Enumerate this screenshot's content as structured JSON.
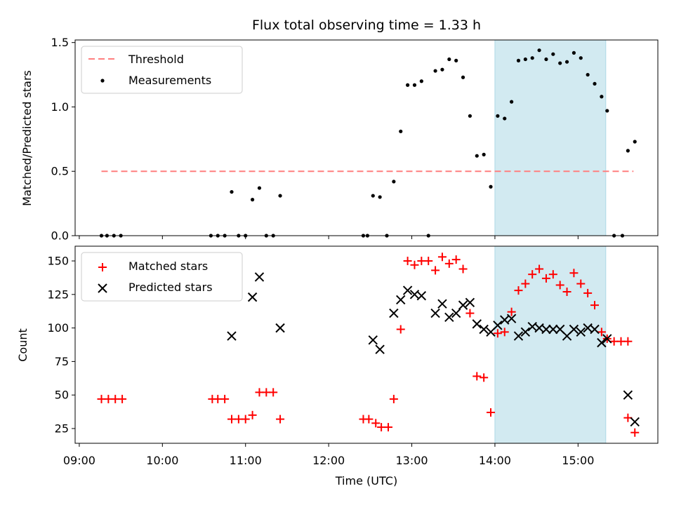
{
  "chart_data": {
    "type": "scatter",
    "title": "Flux total observing time = 1.33 h",
    "xlabel": "Time (UTC)",
    "x_ticks": [
      "09:00",
      "10:00",
      "11:00",
      "12:00",
      "13:00",
      "14:00",
      "15:00"
    ],
    "highlight_span": {
      "start": "14:00",
      "end": "15:20",
      "color": "#add8e6"
    },
    "top_panel": {
      "ylabel": "Matched/Predicted stars",
      "ylim": [
        0,
        1.52
      ],
      "y_ticks": [
        "0.0",
        "0.5",
        "1.0",
        "1.5"
      ],
      "legend_position": "top-left",
      "threshold": {
        "name": "Threshold",
        "value": 0.5,
        "x_start": "09:16",
        "x_end": "15:40",
        "color": "#ff7f7f"
      },
      "series": [
        {
          "name": "Measurements",
          "color": "#000000",
          "marker": "dot",
          "points": [
            [
              "09:16",
              0
            ],
            [
              "09:20",
              0
            ],
            [
              "09:25",
              0
            ],
            [
              "09:30",
              0
            ],
            [
              "10:35",
              0
            ],
            [
              "10:40",
              0
            ],
            [
              "10:45",
              0
            ],
            [
              "10:50",
              0.34
            ],
            [
              "10:55",
              0
            ],
            [
              "11:00",
              0
            ],
            [
              "11:05",
              0.28
            ],
            [
              "11:10",
              0.37
            ],
            [
              "11:15",
              0
            ],
            [
              "11:20",
              0
            ],
            [
              "11:25",
              0.31
            ],
            [
              "12:25",
              0
            ],
            [
              "12:28",
              0
            ],
            [
              "12:32",
              0.31
            ],
            [
              "12:37",
              0.3
            ],
            [
              "12:42",
              0
            ],
            [
              "12:47",
              0.42
            ],
            [
              "12:52",
              0.81
            ],
            [
              "12:57",
              1.17
            ],
            [
              "13:02",
              1.17
            ],
            [
              "13:07",
              1.2
            ],
            [
              "13:12",
              0
            ],
            [
              "13:17",
              1.28
            ],
            [
              "13:22",
              1.29
            ],
            [
              "13:27",
              1.37
            ],
            [
              "13:32",
              1.36
            ],
            [
              "13:37",
              1.23
            ],
            [
              "13:42",
              0.93
            ],
            [
              "13:47",
              0.62
            ],
            [
              "13:52",
              0.63
            ],
            [
              "13:57",
              0.38
            ],
            [
              "14:02",
              0.93
            ],
            [
              "14:07",
              0.91
            ],
            [
              "14:12",
              1.04
            ],
            [
              "14:17",
              1.36
            ],
            [
              "14:22",
              1.37
            ],
            [
              "14:27",
              1.38
            ],
            [
              "14:32",
              1.44
            ],
            [
              "14:37",
              1.37
            ],
            [
              "14:42",
              1.41
            ],
            [
              "14:47",
              1.34
            ],
            [
              "14:52",
              1.35
            ],
            [
              "14:57",
              1.42
            ],
            [
              "15:02",
              1.38
            ],
            [
              "15:07",
              1.25
            ],
            [
              "15:12",
              1.18
            ],
            [
              "15:17",
              1.08
            ],
            [
              "15:21",
              0.97
            ],
            [
              "15:26",
              0
            ],
            [
              "15:32",
              0
            ],
            [
              "15:36",
              0.66
            ],
            [
              "15:41",
              0.73
            ]
          ]
        }
      ]
    },
    "bottom_panel": {
      "ylabel": "Count",
      "ylim": [
        14,
        161
      ],
      "y_ticks": [
        "25",
        "50",
        "75",
        "100",
        "125",
        "150"
      ],
      "legend_position": "top-left",
      "series": [
        {
          "name": "Matched stars",
          "color": "#ff0000",
          "marker": "plus",
          "points": [
            [
              "09:16",
              47
            ],
            [
              "09:21",
              47
            ],
            [
              "09:26",
              47
            ],
            [
              "09:31",
              47
            ],
            [
              "10:36",
              47
            ],
            [
              "10:40",
              47
            ],
            [
              "10:45",
              47
            ],
            [
              "10:50",
              32
            ],
            [
              "10:55",
              32
            ],
            [
              "11:00",
              32
            ],
            [
              "11:05",
              35
            ],
            [
              "11:10",
              52
            ],
            [
              "11:15",
              52
            ],
            [
              "11:20",
              52
            ],
            [
              "11:25",
              32
            ],
            [
              "12:25",
              32
            ],
            [
              "12:29",
              32
            ],
            [
              "12:34",
              29
            ],
            [
              "12:38",
              26
            ],
            [
              "12:43",
              26
            ],
            [
              "12:47",
              47
            ],
            [
              "12:52",
              99
            ],
            [
              "12:57",
              150
            ],
            [
              "13:02",
              147
            ],
            [
              "13:07",
              150
            ],
            [
              "13:12",
              150
            ],
            [
              "13:17",
              143
            ],
            [
              "13:22",
              153
            ],
            [
              "13:27",
              148
            ],
            [
              "13:32",
              151
            ],
            [
              "13:37",
              144
            ],
            [
              "13:42",
              111
            ],
            [
              "13:47",
              64
            ],
            [
              "13:52",
              63
            ],
            [
              "13:57",
              37
            ],
            [
              "14:02",
              96
            ],
            [
              "14:07",
              97
            ],
            [
              "14:12",
              112
            ],
            [
              "14:17",
              128
            ],
            [
              "14:22",
              133
            ],
            [
              "14:27",
              140
            ],
            [
              "14:32",
              144
            ],
            [
              "14:37",
              137
            ],
            [
              "14:42",
              140
            ],
            [
              "14:47",
              132
            ],
            [
              "14:52",
              127
            ],
            [
              "14:57",
              141
            ],
            [
              "15:02",
              133
            ],
            [
              "15:07",
              126
            ],
            [
              "15:12",
              117
            ],
            [
              "15:17",
              97
            ],
            [
              "15:21",
              92
            ],
            [
              "15:26",
              90
            ],
            [
              "15:31",
              90
            ],
            [
              "15:36",
              90
            ],
            [
              "15:36",
              33
            ],
            [
              "15:41",
              22
            ]
          ]
        },
        {
          "name": "Predicted stars",
          "color": "#000000",
          "marker": "x",
          "points": [
            [
              "10:50",
              94
            ],
            [
              "11:05",
              123
            ],
            [
              "11:10",
              138
            ],
            [
              "11:25",
              100
            ],
            [
              "12:32",
              91
            ],
            [
              "12:37",
              84
            ],
            [
              "12:47",
              111
            ],
            [
              "12:52",
              121
            ],
            [
              "12:57",
              128
            ],
            [
              "13:02",
              125
            ],
            [
              "13:07",
              124
            ],
            [
              "13:17",
              111
            ],
            [
              "13:22",
              118
            ],
            [
              "13:27",
              108
            ],
            [
              "13:32",
              111
            ],
            [
              "13:37",
              117
            ],
            [
              "13:42",
              119
            ],
            [
              "13:47",
              103
            ],
            [
              "13:52",
              99
            ],
            [
              "13:57",
              97
            ],
            [
              "14:02",
              102
            ],
            [
              "14:07",
              106
            ],
            [
              "14:12",
              107
            ],
            [
              "14:17",
              94
            ],
            [
              "14:22",
              97
            ],
            [
              "14:27",
              101
            ],
            [
              "14:32",
              100
            ],
            [
              "14:37",
              99
            ],
            [
              "14:42",
              99
            ],
            [
              "14:47",
              99
            ],
            [
              "14:52",
              94
            ],
            [
              "14:57",
              99
            ],
            [
              "15:02",
              97
            ],
            [
              "15:07",
              100
            ],
            [
              "15:12",
              99
            ],
            [
              "15:17",
              89
            ],
            [
              "15:21",
              92
            ],
            [
              "15:36",
              50
            ],
            [
              "15:41",
              30
            ]
          ]
        }
      ]
    }
  }
}
